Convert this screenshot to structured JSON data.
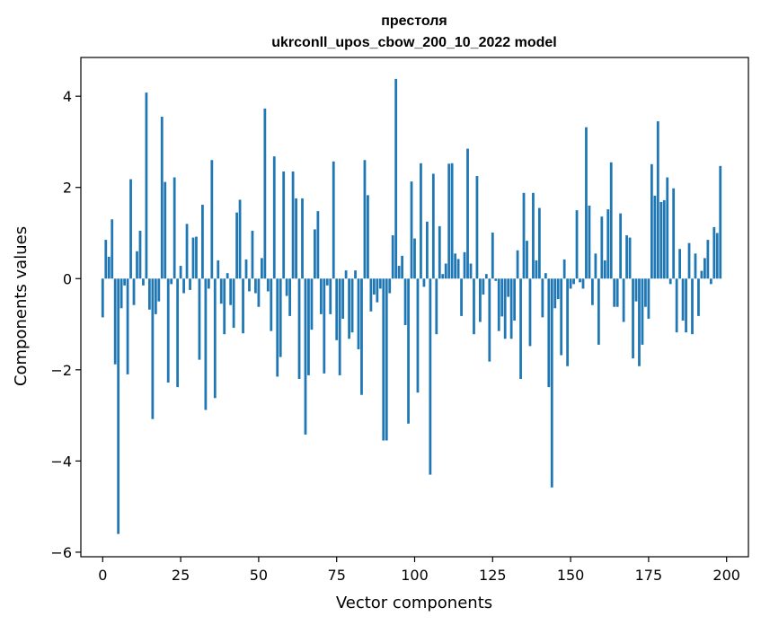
{
  "chart_data": {
    "type": "bar",
    "title_line1": "престоля",
    "title_line2": "ukrconll_upos_cbow_200_10_2022 model",
    "xlabel": "Vector components",
    "ylabel": "Components values",
    "xlim": [
      -7,
      207
    ],
    "ylim": [
      -6.1,
      4.85
    ],
    "xticks": [
      0,
      25,
      50,
      75,
      100,
      125,
      150,
      175,
      200
    ],
    "yticks": [
      -6,
      -4,
      -2,
      0,
      2,
      4
    ],
    "grid": false,
    "bar_color": "#1f77b4",
    "values": [
      -0.85,
      0.85,
      0.48,
      1.3,
      -1.88,
      -5.6,
      -0.65,
      -0.15,
      -2.1,
      2.18,
      -0.58,
      0.6,
      1.05,
      -0.15,
      4.08,
      -0.68,
      -3.08,
      -0.78,
      -0.5,
      3.55,
      2.12,
      -2.28,
      -0.12,
      2.22,
      -2.38,
      0.28,
      -0.32,
      1.2,
      -0.25,
      0.9,
      0.92,
      -1.78,
      1.62,
      -2.88,
      -0.22,
      2.6,
      -2.62,
      0.4,
      -0.55,
      -1.22,
      0.12,
      -0.58,
      -1.08,
      1.45,
      1.73,
      -1.2,
      0.42,
      -0.28,
      1.05,
      -0.32,
      -0.62,
      0.45,
      3.73,
      -0.28,
      -1.15,
      2.68,
      -2.15,
      -1.72,
      2.35,
      -0.38,
      -0.82,
      2.35,
      1.76,
      -2.2,
      1.76,
      -3.42,
      -2.12,
      -1.12,
      1.08,
      1.48,
      -0.78,
      -2.08,
      -0.15,
      -0.78,
      2.57,
      -1.35,
      -2.12,
      -0.88,
      0.18,
      -1.32,
      -1.18,
      0.18,
      -1.55,
      -2.55,
      2.6,
      1.83,
      -0.72,
      -0.35,
      -0.52,
      -0.22,
      -3.55,
      -3.55,
      -0.32,
      0.95,
      4.38,
      0.28,
      0.5,
      -1.02,
      -3.18,
      2.13,
      0.88,
      -2.5,
      2.53,
      -0.18,
      1.25,
      -4.3,
      2.3,
      -1.22,
      1.15,
      0.1,
      0.33,
      2.52,
      2.53,
      0.55,
      0.43,
      -0.82,
      0.58,
      2.85,
      0.33,
      -1.22,
      2.25,
      -0.95,
      -0.35,
      0.1,
      -1.82,
      1.01,
      -0.05,
      -1.15,
      -0.83,
      -1.32,
      -0.4,
      -1.32,
      -0.92,
      0.62,
      -2.2,
      1.88,
      0.83,
      -1.48,
      1.88,
      0.4,
      1.55,
      -0.85,
      0.12,
      -2.38,
      -4.58,
      -0.65,
      -0.45,
      -1.68,
      0.42,
      -1.92,
      -0.22,
      -0.12,
      1.5,
      -0.08,
      -0.22,
      3.32,
      1.6,
      -0.58,
      0.55,
      -1.45,
      1.36,
      0.4,
      1.52,
      2.55,
      -0.62,
      -0.62,
      1.43,
      -0.95,
      0.95,
      0.9,
      -1.75,
      -0.5,
      -1.92,
      -1.45,
      -0.62,
      -0.88,
      2.51,
      1.82,
      3.45,
      1.68,
      1.72,
      2.22,
      -0.12,
      1.98,
      -1.18,
      0.65,
      -0.92,
      -1.18,
      0.78,
      -1.22,
      0.55,
      -0.82,
      0.17,
      0.45,
      0.85,
      -0.12,
      1.13,
      1.0,
      2.47
    ]
  }
}
